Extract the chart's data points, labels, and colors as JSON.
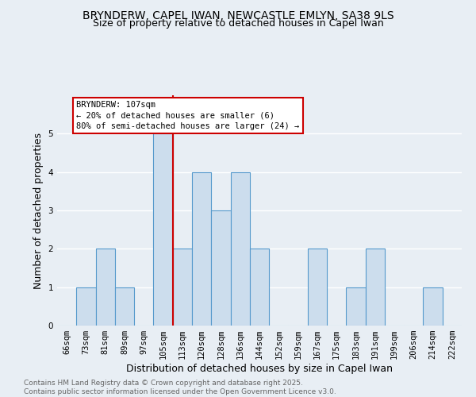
{
  "title1": "BRYNDERW, CAPEL IWAN, NEWCASTLE EMLYN, SA38 9LS",
  "title2": "Size of property relative to detached houses in Capel Iwan",
  "xlabel": "Distribution of detached houses by size in Capel Iwan",
  "ylabel": "Number of detached properties",
  "categories": [
    "66sqm",
    "73sqm",
    "81sqm",
    "89sqm",
    "97sqm",
    "105sqm",
    "113sqm",
    "120sqm",
    "128sqm",
    "136sqm",
    "144sqm",
    "152sqm",
    "159sqm",
    "167sqm",
    "175sqm",
    "183sqm",
    "191sqm",
    "199sqm",
    "206sqm",
    "214sqm",
    "222sqm"
  ],
  "values": [
    0,
    1,
    2,
    1,
    0,
    5,
    2,
    4,
    3,
    4,
    2,
    0,
    0,
    2,
    0,
    1,
    2,
    0,
    0,
    1,
    0
  ],
  "bar_color": "#ccdded",
  "bar_edge_color": "#5599cc",
  "red_line_index": 5,
  "annotation_text": "BRYNDERW: 107sqm\n← 20% of detached houses are smaller (6)\n80% of semi-detached houses are larger (24) →",
  "annotation_box_color": "#ffffff",
  "annotation_box_edge": "#cc0000",
  "ylim": [
    0,
    6
  ],
  "yticks": [
    0,
    1,
    2,
    3,
    4,
    5
  ],
  "footer": "Contains HM Land Registry data © Crown copyright and database right 2025.\nContains public sector information licensed under the Open Government Licence v3.0.",
  "bg_color": "#e8eef4",
  "plot_bg_color": "#e8eef4",
  "grid_color": "#ffffff",
  "title_fontsize": 10,
  "subtitle_fontsize": 9,
  "axis_label_fontsize": 9,
  "tick_fontsize": 7.5,
  "footer_fontsize": 6.5,
  "ann_fontsize": 7.5
}
